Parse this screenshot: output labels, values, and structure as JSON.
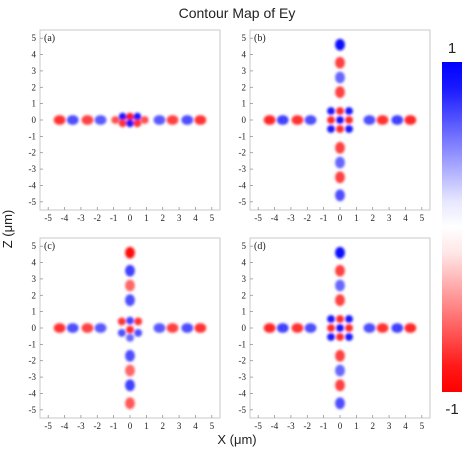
{
  "chart_data": {
    "type": "heatmap",
    "title": "Contour Map of Ey",
    "xlabel": "X (μm)",
    "ylabel": "Z (μm)",
    "xlim": [
      -5.5,
      5.5
    ],
    "ylim": [
      -5.5,
      5.5
    ],
    "x_ticks": [
      -5,
      -4,
      -3,
      -2,
      -1,
      0,
      1,
      2,
      3,
      4,
      5
    ],
    "y_ticks": [
      -5,
      -4,
      -3,
      -2,
      -1,
      0,
      1,
      2,
      3,
      4,
      5
    ],
    "tick_labels": [
      "-5",
      "-4",
      "-3",
      "-2",
      "-1",
      "0",
      "1",
      "2",
      "3",
      "4",
      "5"
    ],
    "colorbar": {
      "min": -1,
      "max": 1,
      "min_label": "-1",
      "max_label": "1",
      "colormap": [
        "#ff0000",
        "#ffffff",
        "#0000ff"
      ]
    },
    "panels": [
      {
        "label": "(a)",
        "horizontal_lobes": [
          {
            "x": -4.3,
            "v": -0.8
          },
          {
            "x": -3.5,
            "v": 0.7
          },
          {
            "x": -2.6,
            "v": -0.75
          },
          {
            "x": -1.8,
            "v": 0.65
          },
          {
            "x": 1.8,
            "v": 0.65
          },
          {
            "x": 2.6,
            "v": -0.75
          },
          {
            "x": 3.5,
            "v": 0.7
          },
          {
            "x": 4.3,
            "v": -0.8
          }
        ],
        "vertical_lobes": [],
        "center": [
          {
            "x": -0.9,
            "z": 0,
            "v": -0.7
          },
          {
            "x": -0.45,
            "z": 0.2,
            "v": 0.9
          },
          {
            "x": -0.45,
            "z": -0.2,
            "v": -0.8
          },
          {
            "x": 0,
            "z": 0.2,
            "v": -0.9
          },
          {
            "x": 0,
            "z": -0.2,
            "v": 0.9
          },
          {
            "x": 0.45,
            "z": 0.2,
            "v": 0.9
          },
          {
            "x": 0.45,
            "z": -0.2,
            "v": -0.8
          },
          {
            "x": 0.9,
            "z": 0,
            "v": -0.7
          }
        ]
      },
      {
        "label": "(b)",
        "horizontal_lobes": [
          {
            "x": -4.3,
            "v": -0.85
          },
          {
            "x": -3.5,
            "v": 0.75
          },
          {
            "x": -2.6,
            "v": -0.8
          },
          {
            "x": -1.8,
            "v": 0.7
          },
          {
            "x": 1.8,
            "v": 0.7
          },
          {
            "x": 2.6,
            "v": -0.8
          },
          {
            "x": 3.5,
            "v": 0.75
          },
          {
            "x": 4.3,
            "v": -0.85
          }
        ],
        "vertical_lobes": [
          {
            "z": 4.6,
            "v": 0.95
          },
          {
            "z": 3.5,
            "v": -0.75
          },
          {
            "z": 2.6,
            "v": 0.6
          },
          {
            "z": 1.7,
            "v": -0.75
          },
          {
            "z": -1.7,
            "v": -0.75
          },
          {
            "z": -2.6,
            "v": 0.6
          },
          {
            "z": -3.5,
            "v": -0.75
          },
          {
            "z": -4.6,
            "v": 0.7
          }
        ],
        "center": [
          {
            "x": -0.55,
            "z": 0.55,
            "v": 0.9
          },
          {
            "x": 0,
            "z": 0.55,
            "v": -0.85
          },
          {
            "x": 0.55,
            "z": 0.55,
            "v": 0.9
          },
          {
            "x": -0.55,
            "z": 0,
            "v": -0.85
          },
          {
            "x": 0,
            "z": 0,
            "v": 0.95
          },
          {
            "x": 0.55,
            "z": 0,
            "v": -0.85
          },
          {
            "x": -0.55,
            "z": -0.55,
            "v": 0.9
          },
          {
            "x": 0,
            "z": -0.55,
            "v": -0.85
          },
          {
            "x": 0.55,
            "z": -0.55,
            "v": 0.9
          }
        ]
      },
      {
        "label": "(c)",
        "horizontal_lobes": [
          {
            "x": -4.3,
            "v": -0.8
          },
          {
            "x": -3.5,
            "v": 0.7
          },
          {
            "x": -2.6,
            "v": -0.75
          },
          {
            "x": -1.8,
            "v": 0.65
          },
          {
            "x": 1.8,
            "v": 0.65
          },
          {
            "x": 2.6,
            "v": -0.75
          },
          {
            "x": 3.5,
            "v": 0.7
          },
          {
            "x": 4.3,
            "v": -0.8
          }
        ],
        "vertical_lobes": [
          {
            "z": 4.6,
            "v": -0.95
          },
          {
            "z": 3.5,
            "v": 0.75
          },
          {
            "z": 2.6,
            "v": -0.6
          },
          {
            "z": 1.7,
            "v": 0.7
          },
          {
            "z": -1.7,
            "v": 0.7
          },
          {
            "z": -2.6,
            "v": -0.6
          },
          {
            "z": -3.5,
            "v": 0.75
          },
          {
            "z": -4.6,
            "v": -0.65
          }
        ],
        "center": [
          {
            "x": -0.5,
            "z": 0.4,
            "v": -0.8
          },
          {
            "x": 0.5,
            "z": 0.4,
            "v": -0.8
          },
          {
            "x": 0,
            "z": 0.45,
            "v": 0.75
          },
          {
            "x": -0.5,
            "z": -0.3,
            "v": 0.7
          },
          {
            "x": 0.5,
            "z": -0.3,
            "v": 0.7
          },
          {
            "x": 0,
            "z": -0.1,
            "v": -0.85
          },
          {
            "x": 0,
            "z": -0.6,
            "v": 0.6
          }
        ]
      },
      {
        "label": "(d)",
        "horizontal_lobes": [
          {
            "x": -4.3,
            "v": -0.85
          },
          {
            "x": -3.5,
            "v": 0.75
          },
          {
            "x": -2.6,
            "v": -0.8
          },
          {
            "x": -1.8,
            "v": 0.7
          },
          {
            "x": 1.8,
            "v": 0.7
          },
          {
            "x": 2.6,
            "v": -0.8
          },
          {
            "x": 3.5,
            "v": 0.75
          },
          {
            "x": 4.3,
            "v": -0.85
          }
        ],
        "vertical_lobes": [
          {
            "z": 4.6,
            "v": 0.95
          },
          {
            "z": 3.5,
            "v": -0.75
          },
          {
            "z": 2.6,
            "v": 0.6
          },
          {
            "z": 1.7,
            "v": -0.75
          },
          {
            "z": -1.7,
            "v": -0.75
          },
          {
            "z": -2.6,
            "v": 0.6
          },
          {
            "z": -3.5,
            "v": -0.75
          },
          {
            "z": -4.6,
            "v": 0.7
          }
        ],
        "center": [
          {
            "x": -0.55,
            "z": 0.55,
            "v": 0.9
          },
          {
            "x": 0,
            "z": 0.55,
            "v": -0.85
          },
          {
            "x": 0.55,
            "z": 0.55,
            "v": 0.9
          },
          {
            "x": -0.55,
            "z": 0,
            "v": -0.85
          },
          {
            "x": 0,
            "z": 0,
            "v": 0.95
          },
          {
            "x": 0.55,
            "z": 0,
            "v": -0.85
          },
          {
            "x": -0.55,
            "z": -0.55,
            "v": 0.9
          },
          {
            "x": 0,
            "z": -0.55,
            "v": -0.85
          },
          {
            "x": 0.55,
            "z": -0.55,
            "v": 0.9
          }
        ]
      }
    ]
  }
}
